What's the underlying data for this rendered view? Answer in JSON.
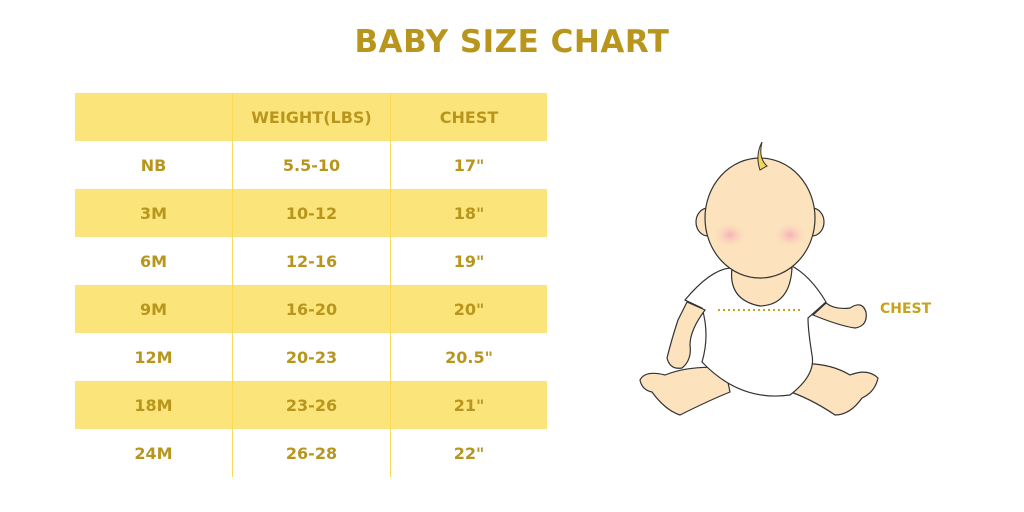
{
  "title": "BABY SIZE CHART",
  "table": {
    "headers": [
      "",
      "WEIGHT(LBS)",
      "CHEST"
    ],
    "rows": [
      [
        "NB",
        "5.5-10",
        "17\""
      ],
      [
        "3M",
        "10-12",
        "18\""
      ],
      [
        "6M",
        "12-16",
        "19\""
      ],
      [
        "9M",
        "16-20",
        "20\""
      ],
      [
        "12M",
        "20-23",
        "20.5\""
      ],
      [
        "18M",
        "23-26",
        "21\""
      ],
      [
        "24M",
        "26-28",
        "22\""
      ]
    ]
  },
  "illustration": {
    "chest_label": "CHEST"
  },
  "colors": {
    "accent_text": "#B8961E",
    "row_highlight": "#FBE57A",
    "skin": "#FCE3BD"
  }
}
